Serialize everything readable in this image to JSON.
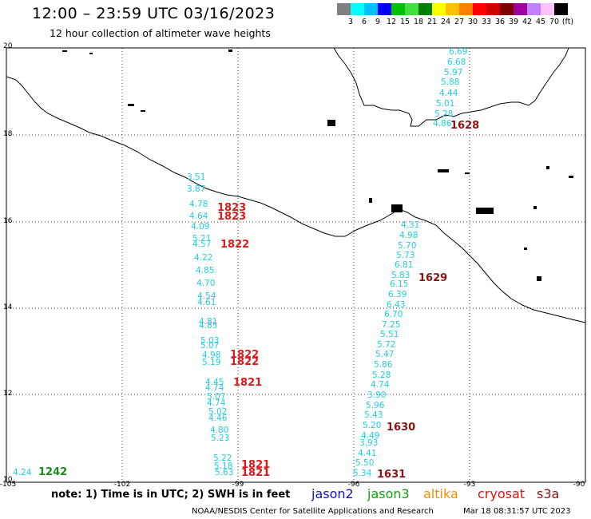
{
  "header": {
    "title": "12:00 – 23:59 UTC 03/16/2023",
    "subtitle": "12 hour collection of altimeter wave heights"
  },
  "colorbar": {
    "colors": [
      "#808080",
      "#00ffff",
      "#00c0ff",
      "#0000ff",
      "#00c000",
      "#40e040",
      "#008000",
      "#ffff00",
      "#ffc000",
      "#ff8000",
      "#ff0000",
      "#d00000",
      "#800000",
      "#a000a0",
      "#c080ff",
      "#ffc0ff",
      "#000000"
    ],
    "labels": [
      "3",
      "6",
      "9",
      "12",
      "15",
      "18",
      "21",
      "24",
      "27",
      "30",
      "33",
      "36",
      "39",
      "42",
      "45",
      "70",
      "(ft)"
    ]
  },
  "axes": {
    "lat_labels": [
      "20",
      "18",
      "16",
      "14",
      "12",
      "10"
    ],
    "lon_labels": [
      "-105",
      "-102",
      "-99",
      "-96",
      "-93",
      "-90"
    ]
  },
  "tracks": {
    "west_track_swh": [
      "3.51",
      "3.87",
      "4.78",
      "4.64",
      "4.09",
      "5.21",
      "4.57",
      "4.22",
      "4.85",
      "4.70",
      "4.54",
      "4.61",
      "4.81",
      "4.85",
      "5.03",
      "5.07",
      "4.98",
      "5.19",
      "4.45",
      "4.74",
      "5.07",
      "4.74",
      "5.02",
      "4.46",
      "4.80",
      "5.23",
      "5.22",
      "5.18",
      "5.63"
    ],
    "west_track_times": [
      "1823",
      "1823",
      "1822",
      "1822",
      "1822",
      "1821",
      "1821",
      "1821"
    ],
    "east_track_swh": [
      "4.31",
      "4.98",
      "5.70",
      "5.73",
      "6.81",
      "5.83",
      "6.15",
      "6.39",
      "6.43",
      "6.70",
      "7.25",
      "5.51",
      "5.72",
      "5.47",
      "5.86",
      "5.28",
      "4.74",
      "3.90",
      "5.96",
      "5.43",
      "5.20",
      "4.49",
      "3.93",
      "4.41",
      "5.50",
      "5.34"
    ],
    "east_track_times": [
      "1629",
      "1630",
      "1631"
    ],
    "north_track_swh": [
      "6.69",
      "6.68",
      "5.97",
      "5.88",
      "4.44",
      "5.01",
      "5.28",
      "4.86"
    ],
    "north_track_times": [
      "1628"
    ],
    "corner_swh": "4.24",
    "corner_time": "1242"
  },
  "footer": {
    "note": "note: 1) Time is in UTC; 2) SWH is in feet",
    "legend": [
      {
        "name": "jason2",
        "color": "#1010d0"
      },
      {
        "name": "jason3",
        "color": "#10a010"
      },
      {
        "name": "altika",
        "color": "#f09000"
      },
      {
        "name": "cryosat",
        "color": "#e01010"
      },
      {
        "name": "s3a",
        "color": "#8a1212"
      }
    ],
    "credit": "NOAA/NESDIS Center for Satellite Applications and Research",
    "timestamp": "Mar 18 08:31:57 UTC 2023"
  }
}
